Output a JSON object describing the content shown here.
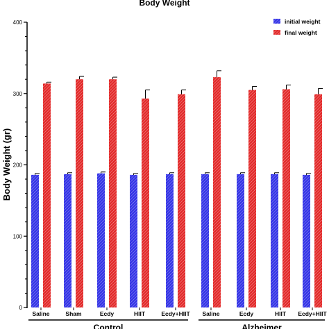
{
  "chart_data": {
    "type": "bar",
    "title": "Body Weight",
    "ylabel": "Body Weight (gr)",
    "xlabel": "",
    "ylim": [
      0,
      400
    ],
    "yticks": [
      0,
      100,
      200,
      300,
      400
    ],
    "grid": false,
    "legend_position": "top-right",
    "categories": [
      "Saline",
      "Sham",
      "Ecdy",
      "HIIT",
      "Ecdy+HIIT",
      "Saline",
      "Ecdy",
      "HIIT",
      "Ecdy+HIIT"
    ],
    "groups": [
      {
        "label": "Control",
        "categories": [
          0,
          1,
          2,
          3,
          4
        ]
      },
      {
        "label": "Alzheimer",
        "categories": [
          5,
          6,
          7,
          8
        ]
      }
    ],
    "series": [
      {
        "name": "initial weight",
        "color": "#2b2bd9",
        "values": [
          186,
          187,
          188,
          186,
          187,
          187,
          187,
          187,
          186
        ],
        "errors": [
          2,
          2,
          2,
          2,
          2,
          2,
          2,
          2,
          2
        ]
      },
      {
        "name": "final weight",
        "color": "#e0242a",
        "values": [
          314,
          320,
          320,
          293,
          299,
          323,
          305,
          306,
          299
        ],
        "errors": [
          2,
          4,
          3,
          12,
          6,
          9,
          5,
          6,
          8
        ]
      }
    ]
  }
}
